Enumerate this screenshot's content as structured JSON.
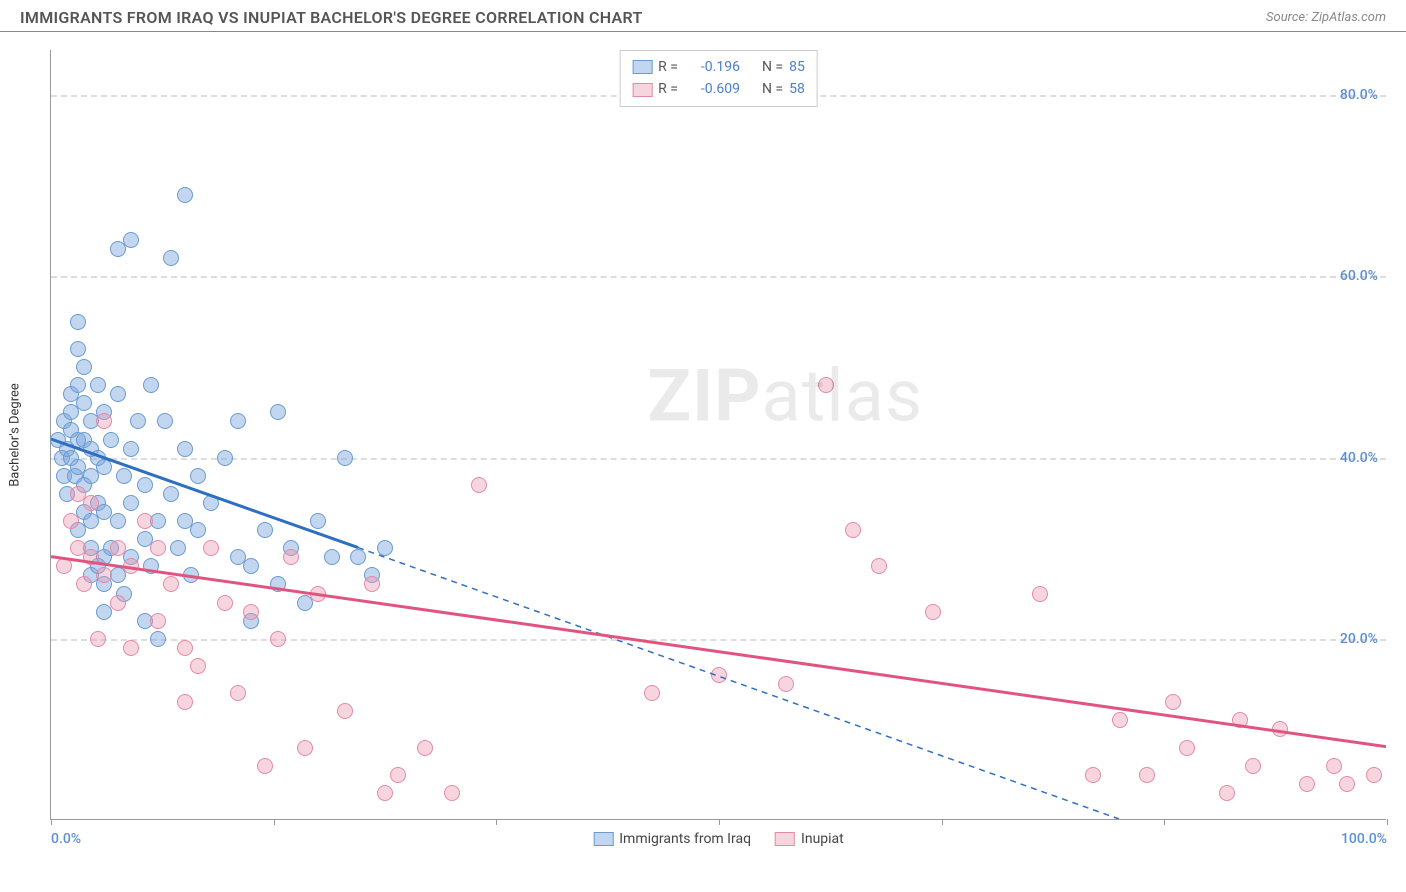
{
  "header": {
    "title": "IMMIGRANTS FROM IRAQ VS INUPIAT BACHELOR'S DEGREE CORRELATION CHART",
    "source_label": "Source: ",
    "source_value": "ZipAtlas.com"
  },
  "watermark": {
    "zip": "ZIP",
    "atlas": "atlas"
  },
  "chart": {
    "type": "scatter",
    "yaxis_title": "Bachelor's Degree",
    "xlim": [
      0,
      100
    ],
    "ylim": [
      0,
      85
    ],
    "xtick_positions": [
      0,
      16.7,
      33.3,
      50,
      66.7,
      83.3,
      100
    ],
    "xtick_labels_shown": {
      "0": "0.0%",
      "100": "100.0%"
    },
    "yticks": [
      20,
      40,
      60,
      80
    ],
    "ytick_labels": [
      "20.0%",
      "40.0%",
      "60.0%",
      "80.0%"
    ],
    "grid_color": "#dddddd",
    "background_color": "#ffffff",
    "axis_color": "#999999",
    "label_color": "#5b8fd6",
    "series": [
      {
        "name": "Immigrants from Iraq",
        "color_fill": "rgba(120,165,220,0.45)",
        "color_stroke": "#6b9bd1",
        "line_color": "#2f6fc2",
        "R": "-0.196",
        "N": "85",
        "trend": {
          "x1": 0,
          "y1": 42,
          "x2": 23,
          "y2": 30,
          "ext_x2": 80,
          "ext_y2": 0
        },
        "points": [
          [
            0.5,
            42
          ],
          [
            0.8,
            40
          ],
          [
            1,
            38
          ],
          [
            1,
            44
          ],
          [
            1.2,
            36
          ],
          [
            1.2,
            41
          ],
          [
            1.5,
            40
          ],
          [
            1.5,
            43
          ],
          [
            1.5,
            45
          ],
          [
            1.5,
            47
          ],
          [
            1.8,
            38
          ],
          [
            2,
            32
          ],
          [
            2,
            39
          ],
          [
            2,
            42
          ],
          [
            2,
            48
          ],
          [
            2,
            52
          ],
          [
            2,
            55
          ],
          [
            2.5,
            34
          ],
          [
            2.5,
            37
          ],
          [
            2.5,
            42
          ],
          [
            2.5,
            46
          ],
          [
            2.5,
            50
          ],
          [
            3,
            27
          ],
          [
            3,
            30
          ],
          [
            3,
            33
          ],
          [
            3,
            38
          ],
          [
            3,
            41
          ],
          [
            3,
            44
          ],
          [
            3.5,
            28
          ],
          [
            3.5,
            35
          ],
          [
            3.5,
            40
          ],
          [
            3.5,
            48
          ],
          [
            4,
            23
          ],
          [
            4,
            26
          ],
          [
            4,
            29
          ],
          [
            4,
            34
          ],
          [
            4,
            39
          ],
          [
            4,
            45
          ],
          [
            4.5,
            30
          ],
          [
            4.5,
            42
          ],
          [
            5,
            27
          ],
          [
            5,
            33
          ],
          [
            5,
            47
          ],
          [
            5,
            63
          ],
          [
            5.5,
            25
          ],
          [
            5.5,
            38
          ],
          [
            6,
            29
          ],
          [
            6,
            35
          ],
          [
            6,
            41
          ],
          [
            6,
            64
          ],
          [
            6.5,
            44
          ],
          [
            7,
            22
          ],
          [
            7,
            31
          ],
          [
            7,
            37
          ],
          [
            7.5,
            28
          ],
          [
            7.5,
            48
          ],
          [
            8,
            33
          ],
          [
            8,
            20
          ],
          [
            8.5,
            44
          ],
          [
            9,
            36
          ],
          [
            9,
            62
          ],
          [
            9.5,
            30
          ],
          [
            10,
            33
          ],
          [
            10,
            41
          ],
          [
            10,
            69
          ],
          [
            10.5,
            27
          ],
          [
            11,
            32
          ],
          [
            11,
            38
          ],
          [
            12,
            35
          ],
          [
            13,
            40
          ],
          [
            14,
            29
          ],
          [
            14,
            44
          ],
          [
            15,
            22
          ],
          [
            15,
            28
          ],
          [
            16,
            32
          ],
          [
            17,
            26
          ],
          [
            17,
            45
          ],
          [
            18,
            30
          ],
          [
            19,
            24
          ],
          [
            20,
            33
          ],
          [
            21,
            29
          ],
          [
            22,
            40
          ],
          [
            23,
            29
          ],
          [
            24,
            27
          ],
          [
            25,
            30
          ]
        ]
      },
      {
        "name": "Inupiat",
        "color_fill": "rgba(235,150,175,0.4)",
        "color_stroke": "#e48aa8",
        "line_color": "#e0557f",
        "R": "-0.609",
        "N": "58",
        "trend": {
          "x1": 0,
          "y1": 29,
          "x2": 100,
          "y2": 8
        },
        "points": [
          [
            1,
            28
          ],
          [
            1.5,
            33
          ],
          [
            2,
            30
          ],
          [
            2,
            36
          ],
          [
            2.5,
            26
          ],
          [
            3,
            29
          ],
          [
            3,
            35
          ],
          [
            3.5,
            20
          ],
          [
            4,
            27
          ],
          [
            4,
            44
          ],
          [
            5,
            24
          ],
          [
            5,
            30
          ],
          [
            6,
            19
          ],
          [
            6,
            28
          ],
          [
            7,
            33
          ],
          [
            8,
            22
          ],
          [
            8,
            30
          ],
          [
            9,
            26
          ],
          [
            10,
            19
          ],
          [
            10,
            13
          ],
          [
            11,
            17
          ],
          [
            12,
            30
          ],
          [
            13,
            24
          ],
          [
            14,
            14
          ],
          [
            15,
            23
          ],
          [
            16,
            6
          ],
          [
            17,
            20
          ],
          [
            18,
            29
          ],
          [
            19,
            8
          ],
          [
            20,
            25
          ],
          [
            22,
            12
          ],
          [
            24,
            26
          ],
          [
            25,
            3
          ],
          [
            26,
            5
          ],
          [
            28,
            8
          ],
          [
            30,
            3
          ],
          [
            32,
            37
          ],
          [
            45,
            14
          ],
          [
            50,
            16
          ],
          [
            55,
            15
          ],
          [
            58,
            48
          ],
          [
            60,
            32
          ],
          [
            62,
            28
          ],
          [
            66,
            23
          ],
          [
            74,
            25
          ],
          [
            78,
            5
          ],
          [
            80,
            11
          ],
          [
            82,
            5
          ],
          [
            84,
            13
          ],
          [
            85,
            8
          ],
          [
            88,
            3
          ],
          [
            89,
            11
          ],
          [
            90,
            6
          ],
          [
            92,
            10
          ],
          [
            94,
            4
          ],
          [
            96,
            6
          ],
          [
            97,
            4
          ],
          [
            99,
            5
          ]
        ]
      }
    ],
    "legend_top": {
      "R_label": "R  =",
      "N_label": "N  ="
    },
    "legend_bottom": [
      {
        "label": "Immigrants from Iraq",
        "fill": "rgba(120,165,220,0.45)",
        "stroke": "#6b9bd1"
      },
      {
        "label": "Inupiat",
        "fill": "rgba(235,150,175,0.4)",
        "stroke": "#e48aa8"
      }
    ]
  }
}
